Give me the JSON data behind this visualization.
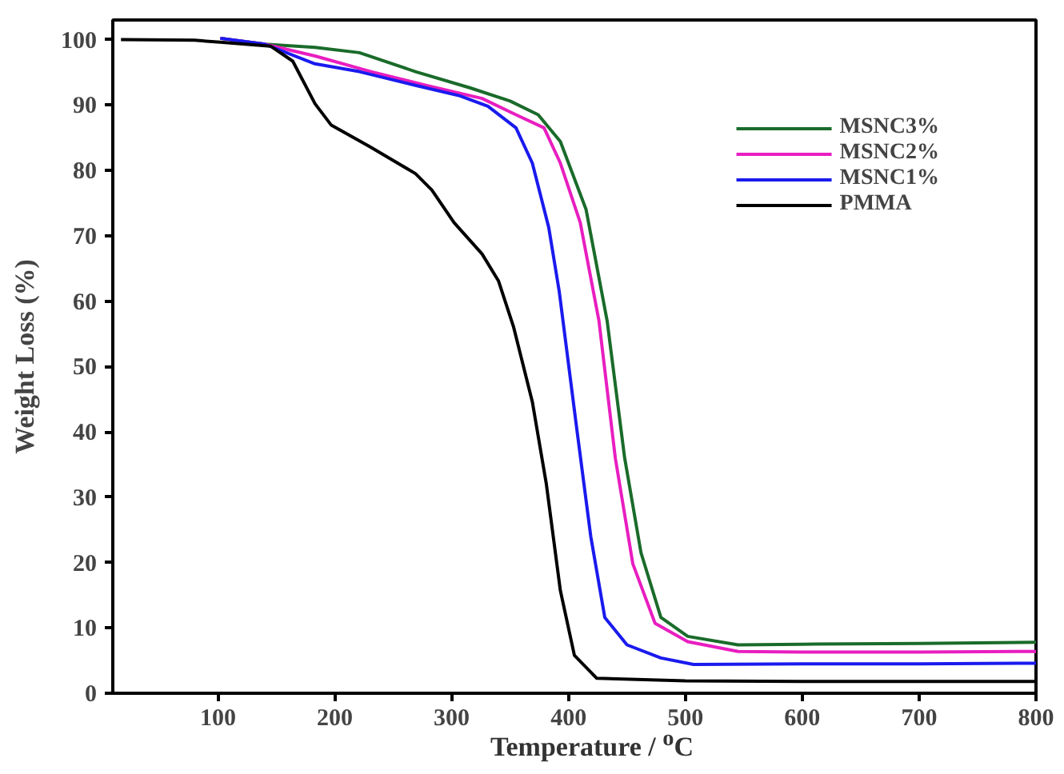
{
  "chart_data": {
    "type": "line",
    "xlabel": "Temperature / $^{o}$C",
    "ylabel": "Weight Loss (%)",
    "xlim": [
      10,
      800
    ],
    "ylim": [
      0,
      103
    ],
    "xticks": [
      100,
      200,
      300,
      400,
      500,
      600,
      700,
      800
    ],
    "yticks": [
      0,
      10,
      20,
      30,
      40,
      50,
      60,
      70,
      80,
      90,
      100
    ],
    "grid": false,
    "legend": "top right",
    "line_style": "solid",
    "marker": "none",
    "series": [
      {
        "name": "MSNC3%",
        "color": "#1a6b2a",
        "x": [
          102,
          140,
          183,
          221,
          269,
          316,
          350,
          374,
          393,
          415,
          433,
          448,
          462,
          479,
          502,
          545,
          600,
          700,
          800
        ],
        "values": [
          100.2,
          99.3,
          98.8,
          98,
          95.1,
          92.6,
          90.6,
          88.5,
          84.4,
          74,
          57,
          36,
          21.5,
          11.6,
          8.7,
          7.4,
          7.5,
          7.6,
          7.8
        ]
      },
      {
        "name": "MSNC2%",
        "color": "#e81ec0",
        "x": [
          102,
          140,
          183,
          231,
          278,
          326,
          355,
          379,
          393,
          410,
          426,
          440,
          455,
          474,
          502,
          545,
          600,
          700,
          800
        ],
        "values": [
          100.2,
          99.3,
          97.5,
          95.1,
          93,
          91,
          88.5,
          86.5,
          81.1,
          72,
          57,
          36,
          19.8,
          10.7,
          7.9,
          6.4,
          6.3,
          6.3,
          6.4
        ]
      },
      {
        "name": "MSNC1%",
        "color": "#1a1aee",
        "x": [
          102,
          140,
          183,
          221,
          269,
          307,
          331,
          355,
          369,
          383,
          392,
          407,
          419,
          431,
          450,
          479,
          507,
          600,
          700,
          800
        ],
        "values": [
          100.2,
          99.3,
          96.3,
          95.1,
          93,
          91.4,
          89.8,
          86.5,
          81.1,
          71.3,
          61.5,
          40.5,
          24,
          11.6,
          7.4,
          5.4,
          4.4,
          4.5,
          4.5,
          4.6
        ]
      },
      {
        "name": "PMMA",
        "color": "#000000",
        "x": [
          17,
          80,
          102,
          145,
          164,
          183,
          197,
          230,
          269,
          283,
          302,
          326,
          340,
          353,
          369,
          381,
          393,
          405,
          424,
          500,
          600,
          700,
          800
        ],
        "values": [
          100,
          99.9,
          99.6,
          99,
          96.7,
          90.2,
          86.9,
          83.6,
          79.5,
          77,
          72,
          67.2,
          63.1,
          56,
          44.6,
          32,
          15.7,
          5.8,
          2.3,
          1.9,
          1.8,
          1.8,
          1.8
        ]
      }
    ]
  }
}
